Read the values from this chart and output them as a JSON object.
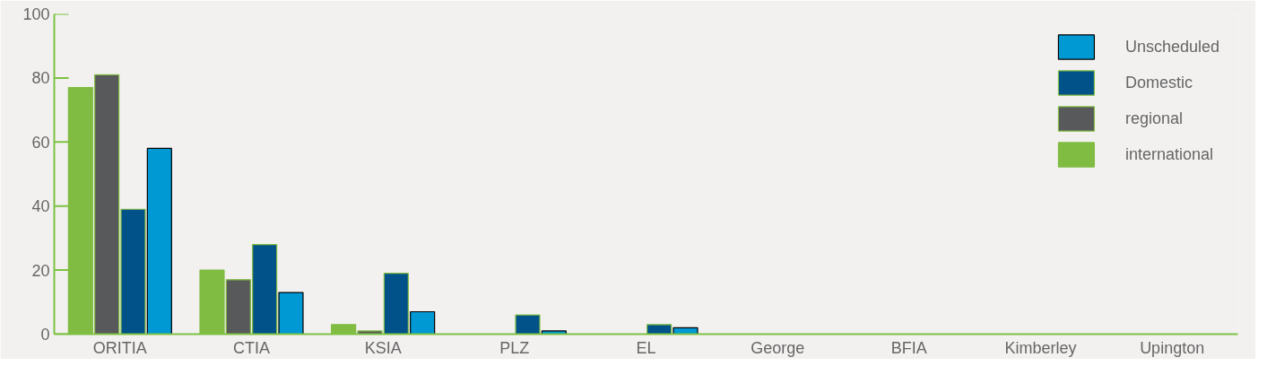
{
  "chart_data": {
    "type": "bar",
    "categories": [
      "ORITIA",
      "CTIA",
      "KSIA",
      "PLZ",
      "EL",
      "George",
      "BFIA",
      "Kimberley",
      "Upington"
    ],
    "series": [
      {
        "name": "international",
        "color": "#80bc41",
        "values": [
          77,
          20,
          3,
          0,
          0,
          0,
          0,
          0,
          0
        ]
      },
      {
        "name": "regional",
        "color": "#58595b",
        "values": [
          81,
          17,
          1,
          0,
          0,
          0,
          0,
          0,
          0
        ]
      },
      {
        "name": "Domestic",
        "color": "#005288",
        "values": [
          39,
          28,
          19,
          6,
          3,
          0,
          0,
          0,
          0
        ]
      },
      {
        "name": "Unscheduled",
        "color": "#0099d4",
        "values": [
          58,
          13,
          7,
          1,
          2,
          0,
          0,
          0,
          0
        ]
      }
    ],
    "ylim": [
      0,
      100
    ],
    "yticks": [
      0,
      20,
      40,
      60,
      80,
      100
    ],
    "grid": false,
    "legend": "top right"
  }
}
